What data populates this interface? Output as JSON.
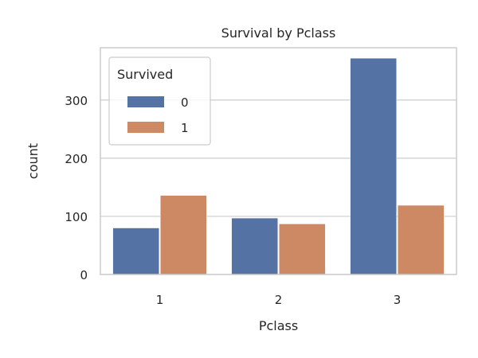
{
  "chart_data": {
    "type": "bar",
    "title": "Survival by Pclass",
    "xlabel": "Pclass",
    "ylabel": "count",
    "categories": [
      "1",
      "2",
      "3"
    ],
    "ylim": [
      0,
      390
    ],
    "yticks": [
      0,
      100,
      200,
      300
    ],
    "grid": true,
    "legend": {
      "title": "Survived",
      "placement": "top-left"
    },
    "series": [
      {
        "name": "0",
        "values": [
          80,
          97,
          372
        ],
        "color": "#5572a4"
      },
      {
        "name": "1",
        "values": [
          136,
          87,
          119
        ],
        "color": "#cc8963"
      }
    ]
  }
}
